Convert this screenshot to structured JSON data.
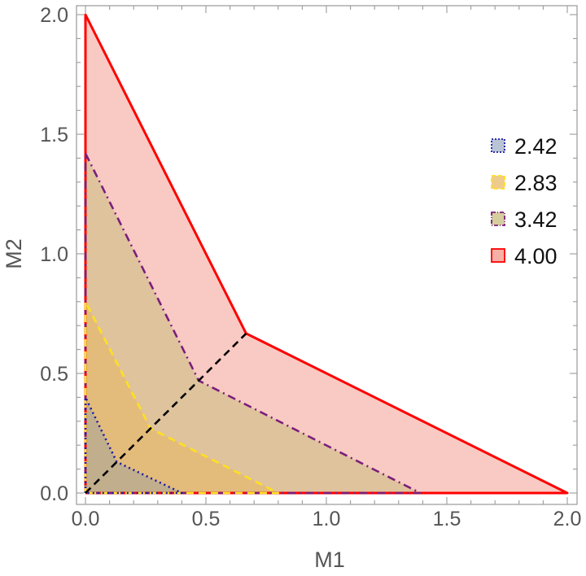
{
  "chart_data": {
    "type": "area",
    "xlabel": "M1",
    "ylabel": "M2",
    "xlim": [
      0,
      2
    ],
    "ylim": [
      0,
      2
    ],
    "x_ticks": [
      "0.0",
      "0.5",
      "1.0",
      "1.5",
      "2.0"
    ],
    "y_ticks": [
      "0.0",
      "0.5",
      "1.0",
      "1.5",
      "2.0"
    ],
    "grid": false,
    "legend_position": "right",
    "series": [
      {
        "name": "4.00",
        "fill": "#f08070",
        "fill_opacity": 0.42,
        "stroke": "#ff0000",
        "dash": "solid",
        "points": [
          [
            0,
            0
          ],
          [
            0,
            2.0
          ],
          [
            0.667,
            0.667
          ],
          [
            2.0,
            0
          ],
          [
            0,
            0
          ]
        ]
      },
      {
        "name": "3.42",
        "fill": "#c8bd7e",
        "fill_opacity": 0.55,
        "stroke": "#7b1e7b",
        "dash": "dashdot",
        "points": [
          [
            0,
            0
          ],
          [
            0,
            1.42
          ],
          [
            0.47,
            0.47
          ],
          [
            1.39,
            0
          ],
          [
            0,
            0
          ]
        ]
      },
      {
        "name": "2.83",
        "fill": "#e8b55a",
        "fill_opacity": 0.5,
        "stroke": "#ffe020",
        "dash": "dashed",
        "points": [
          [
            0,
            0
          ],
          [
            0,
            0.8
          ],
          [
            0.27,
            0.27
          ],
          [
            0.8,
            0
          ],
          [
            0,
            0
          ]
        ]
      },
      {
        "name": "2.42",
        "fill": "#8095b0",
        "fill_opacity": 0.35,
        "stroke": "#1a1aa6",
        "dash": "dotted",
        "points": [
          [
            0,
            0
          ],
          [
            0,
            0.4
          ],
          [
            0.13,
            0.13
          ],
          [
            0.4,
            0
          ],
          [
            0,
            0
          ]
        ]
      }
    ],
    "diagonal": {
      "stroke": "#000000",
      "dash": "dashed",
      "points": [
        [
          0,
          0
        ],
        [
          0.667,
          0.667
        ]
      ]
    },
    "legend_order": [
      "2.42",
      "2.83",
      "3.42",
      "4.00"
    ]
  }
}
